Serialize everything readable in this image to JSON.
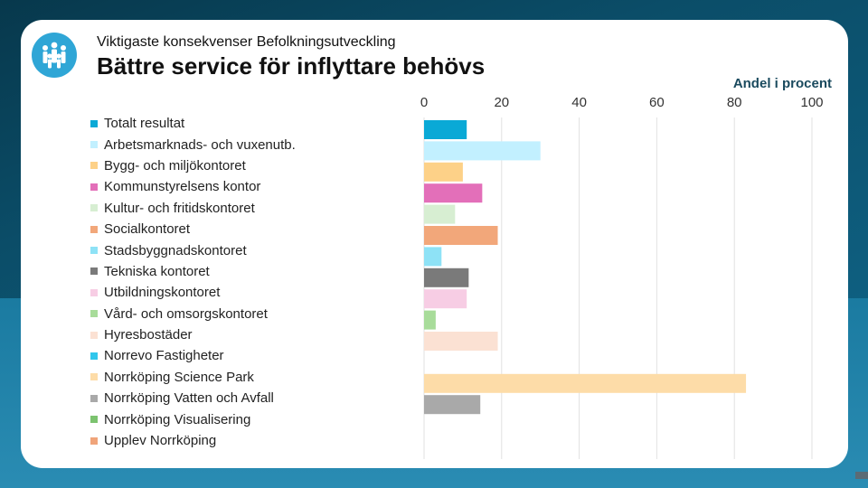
{
  "header": {
    "subtitle": "Viktigaste konsekvenser Befolkningsutveckling",
    "title": "Bättre service för inflyttare behövs"
  },
  "logo_icon": "people-group-icon",
  "chart_data": {
    "type": "bar",
    "orientation": "horizontal",
    "title": "Bättre service för inflyttare behövs",
    "xlabel": "Andel i procent",
    "ylabel": "",
    "xlim": [
      0,
      100
    ],
    "x_ticks": [
      "0",
      "20",
      "40",
      "60",
      "80",
      "100"
    ],
    "grid": true,
    "legend_position": "left",
    "categories": [
      "Totalt resultat",
      "Arbetsmarknads- och vuxenutb.",
      "Bygg- och miljökontoret",
      "Kommunstyrelsens kontor",
      "Kultur- och fritidskontoret",
      "Socialkontoret",
      "Stadsbyggnadskontoret",
      "Tekniska kontoret",
      "Utbildningskontoret",
      "Vård- och omsorgskontoret",
      "Hyresbostäder",
      "Norrevo Fastigheter",
      "Norrköping Science Park",
      "Norrköping Vatten och Avfall",
      "Norrköping Visualisering",
      "Upplev Norrköping"
    ],
    "values": [
      11,
      30,
      10,
      15,
      8,
      19,
      4.5,
      11.5,
      11,
      3,
      19,
      null,
      83,
      14.5,
      null,
      null
    ],
    "colors": [
      "#0aa9d6",
      "#c2f0ff",
      "#fdd188",
      "#e36fb9",
      "#d7eed2",
      "#f2a77a",
      "#8ee2f6",
      "#7a7a7a",
      "#f7cde4",
      "#a8dc9a",
      "#fbe1d3",
      "#30c6ec",
      "#fddca8",
      "#a9a9a9",
      "#7cc36f",
      "#f0a47a"
    ]
  }
}
